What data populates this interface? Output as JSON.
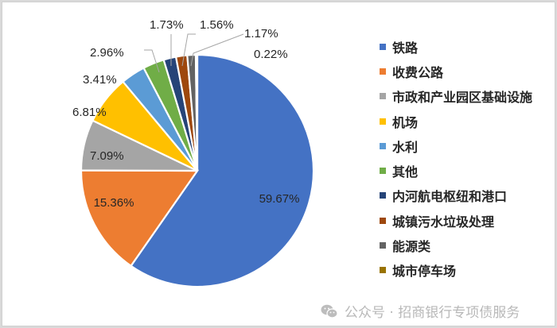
{
  "chart_data": {
    "type": "pie",
    "title": "",
    "start_angle_deg": 0,
    "direction": "clockwise",
    "categories": [
      "铁路",
      "收费公路",
      "市政和产业园区基础设施",
      "机场",
      "水利",
      "其他",
      "内河航电枢纽和港口",
      "城镇污水垃圾处理",
      "能源类",
      "城市停车场"
    ],
    "values": [
      59.67,
      15.36,
      7.09,
      6.81,
      3.41,
      2.96,
      1.73,
      1.56,
      1.17,
      0.22
    ],
    "labels": [
      "59.67%",
      "15.36%",
      "7.09%",
      "6.81%",
      "3.41%",
      "2.96%",
      "1.73%",
      "1.56%",
      "1.17%",
      "0.22%"
    ],
    "colors": [
      "#4472C4",
      "#ED7D31",
      "#A5A5A5",
      "#FFC000",
      "#5B9BD5",
      "#70AD47",
      "#264478",
      "#9E480E",
      "#636363",
      "#997300"
    ],
    "legend_position": "right"
  },
  "legend": {
    "items": [
      {
        "label": "铁路",
        "color": "#4472C4"
      },
      {
        "label": "收费公路",
        "color": "#ED7D31"
      },
      {
        "label": "市政和产业园区基础设施",
        "color": "#A5A5A5"
      },
      {
        "label": "机场",
        "color": "#FFC000"
      },
      {
        "label": "水利",
        "color": "#5B9BD5"
      },
      {
        "label": "其他",
        "color": "#70AD47"
      },
      {
        "label": "内河航电枢纽和港口",
        "color": "#264478"
      },
      {
        "label": "城镇污水垃圾处理",
        "color": "#9E480E"
      },
      {
        "label": "能源类",
        "color": "#636363"
      },
      {
        "label": "城市停车场",
        "color": "#997300"
      }
    ]
  },
  "watermark": {
    "text": "公众号 · 招商银行专项债服务",
    "icon": "wechat-icon"
  }
}
